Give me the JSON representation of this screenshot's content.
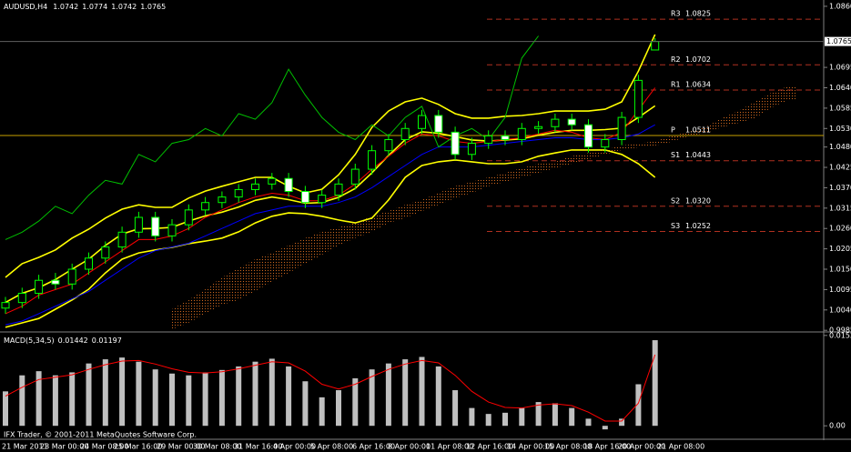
{
  "chart_data": [
    {
      "type": "candlestick",
      "title": "AUDUSD,H4",
      "open": [
        1.0045,
        1.006,
        1.0085,
        1.012,
        1.011,
        1.015,
        1.018,
        1.021,
        1.025,
        1.029,
        1.024,
        1.027,
        1.031,
        1.033,
        1.0345,
        1.0365,
        1.038,
        1.0395,
        1.036,
        1.033,
        1.035,
        1.038,
        1.042,
        1.047,
        1.05,
        1.053,
        1.0565,
        1.052,
        1.046,
        1.049,
        1.051,
        1.05,
        1.053,
        1.0535,
        1.0555,
        1.054,
        1.048,
        1.05,
        1.056,
        1.0742
      ],
      "high": [
        1.0075,
        1.01,
        1.0135,
        1.014,
        1.0165,
        1.0195,
        1.0225,
        1.0265,
        1.0305,
        1.0305,
        1.0285,
        1.0325,
        1.0345,
        1.036,
        1.038,
        1.0395,
        1.041,
        1.041,
        1.0375,
        1.0365,
        1.0395,
        1.0435,
        1.0485,
        1.0515,
        1.0545,
        1.058,
        1.058,
        1.0535,
        1.0505,
        1.0525,
        1.0525,
        1.0545,
        1.055,
        1.057,
        1.057,
        1.0555,
        1.0515,
        1.0575,
        1.0675,
        1.0774
      ],
      "low": [
        1.003,
        1.0045,
        1.007,
        1.0095,
        1.0095,
        1.0135,
        1.0165,
        1.0195,
        1.0235,
        1.0225,
        1.0225,
        1.0255,
        1.0295,
        1.0315,
        1.033,
        1.035,
        1.0365,
        1.0345,
        1.0315,
        1.0315,
        1.0335,
        1.0365,
        1.0405,
        1.0455,
        1.0485,
        1.0515,
        1.0505,
        1.0445,
        1.0445,
        1.0475,
        1.0485,
        1.0485,
        1.0515,
        1.052,
        1.0525,
        1.0465,
        1.0465,
        1.0485,
        1.0545,
        1.0742
      ],
      "close": [
        1.006,
        1.0085,
        1.012,
        1.011,
        1.015,
        1.018,
        1.021,
        1.025,
        1.029,
        1.024,
        1.027,
        1.031,
        1.033,
        1.0345,
        1.0365,
        1.038,
        1.0395,
        1.036,
        1.033,
        1.035,
        1.038,
        1.042,
        1.047,
        1.05,
        1.053,
        1.0565,
        1.052,
        1.046,
        1.049,
        1.051,
        1.05,
        1.053,
        1.0535,
        1.0555,
        1.054,
        1.048,
        1.05,
        1.056,
        1.066,
        1.0765
      ],
      "candle_color": "#00ff00",
      "lines": [
        {
          "color": "#ffff00",
          "values": [
            1.0128,
            1.0165,
            1.0182,
            1.0202,
            1.0234,
            1.0258,
            1.0288,
            1.0312,
            1.0324,
            1.0317,
            1.0317,
            1.0342,
            1.0361,
            1.0374,
            1.0386,
            1.0398,
            1.0398,
            1.0374,
            1.0356,
            1.0366,
            1.0405,
            1.046,
            1.0533,
            1.0577,
            1.0602,
            1.0612,
            1.0595,
            1.057,
            1.0558,
            1.0558,
            1.0563,
            1.0565,
            1.057,
            1.0577,
            1.0577,
            1.0577,
            1.0582,
            1.0602,
            1.0685,
            1.0784
          ]
        },
        {
          "color": "#ffff00",
          "values": [
            1.006,
            1.0085,
            1.01,
            1.0122,
            1.015,
            1.0177,
            1.0214,
            1.0245,
            1.0259,
            1.026,
            1.0263,
            1.028,
            1.0294,
            1.0304,
            1.0318,
            1.0336,
            1.0345,
            1.0338,
            1.0328,
            1.033,
            1.0344,
            1.0368,
            1.041,
            1.0457,
            1.05,
            1.0521,
            1.0517,
            1.0508,
            1.0499,
            1.0496,
            1.0499,
            1.0502,
            1.0512,
            1.052,
            1.0525,
            1.0525,
            1.0527,
            1.0531,
            1.056,
            1.0591
          ]
        },
        {
          "color": "#ffff00",
          "values": [
            0.9993,
            1.0005,
            1.0017,
            1.0042,
            1.0067,
            1.0096,
            1.014,
            1.0177,
            1.0194,
            1.0202,
            1.0209,
            1.0219,
            1.0226,
            1.0234,
            1.0251,
            1.0275,
            1.0293,
            1.0302,
            1.03,
            1.0293,
            1.0283,
            1.0275,
            1.0288,
            1.0337,
            1.0398,
            1.043,
            1.044,
            1.0445,
            1.044,
            1.0435,
            1.0435,
            1.044,
            1.0455,
            1.0464,
            1.0472,
            1.0472,
            1.0472,
            1.046,
            1.0435,
            1.0398
          ]
        },
        {
          "color": "#ff0000",
          "values": [
            1.003,
            1.005,
            1.008,
            1.0095,
            1.011,
            1.014,
            1.017,
            1.02,
            1.023,
            1.023,
            1.024,
            1.026,
            1.029,
            1.031,
            1.033,
            1.0345,
            1.0355,
            1.035,
            1.0335,
            1.0335,
            1.035,
            1.038,
            1.042,
            1.0455,
            1.049,
            1.0515,
            1.051,
            1.0495,
            1.049,
            1.0495,
            1.05,
            1.0505,
            1.0515,
            1.0525,
            1.052,
            1.0505,
            1.05,
            1.052,
            1.058,
            1.064
          ]
        },
        {
          "color": "#0000ff",
          "values": [
            1.0,
            1.001,
            1.003,
            1.005,
            1.007,
            1.009,
            1.012,
            1.015,
            1.018,
            1.02,
            1.021,
            1.022,
            1.024,
            1.026,
            1.028,
            1.03,
            1.031,
            1.032,
            1.032,
            1.032,
            1.033,
            1.0345,
            1.037,
            1.04,
            1.043,
            1.046,
            1.048,
            1.048,
            1.048,
            1.0485,
            1.049,
            1.0495,
            1.05,
            1.0505,
            1.0505,
            1.05,
            1.05,
            1.0505,
            1.0515,
            1.054
          ]
        },
        {
          "color": "#00c000",
          "values": [
            1.023,
            1.025,
            1.028,
            1.032,
            1.03,
            1.035,
            1.039,
            1.038,
            1.046,
            1.044,
            1.049,
            1.05,
            1.053,
            1.051,
            1.057,
            1.0555,
            1.06,
            1.069,
            1.062,
            1.056,
            1.052,
            1.05,
            1.054,
            1.051,
            1.056,
            1.059,
            1.048,
            1.051,
            1.053,
            1.05,
            1.056,
            1.072,
            1.078,
            null,
            null,
            null,
            null,
            null,
            null,
            null
          ]
        }
      ],
      "cloud": {
        "color": "#d2691e",
        "span_a": [
          null,
          null,
          null,
          null,
          null,
          null,
          null,
          null,
          null,
          null,
          1.0042,
          1.0067,
          1.0096,
          1.0128,
          1.0153,
          1.0177,
          1.0194,
          1.0214,
          1.0234,
          1.0251,
          1.0263,
          1.0275,
          1.0293,
          1.0307,
          1.0324,
          1.0337,
          1.0356,
          1.0374,
          1.0386,
          1.0398,
          1.041,
          1.0423,
          1.0435,
          1.044,
          1.0455,
          1.0464,
          1.0472,
          1.0484,
          1.0489,
          1.0496,
          1.0509,
          1.0521,
          1.0533,
          1.0558,
          1.0577,
          1.0602,
          1.0627,
          1.0644
        ],
        "span_b": [
          null,
          null,
          null,
          null,
          null,
          null,
          null,
          null,
          null,
          null,
          0.9988,
          1.0005,
          1.003,
          1.0054,
          1.0067,
          1.0091,
          1.0116,
          1.014,
          1.0165,
          1.0189,
          1.0214,
          1.0234,
          1.0251,
          1.0275,
          1.0288,
          1.0307,
          1.0324,
          1.0342,
          1.0356,
          1.0374,
          1.0386,
          1.0398,
          1.041,
          1.0423,
          1.0435,
          1.0447,
          1.046,
          1.0472,
          1.0479,
          1.0484,
          1.0494,
          1.0509,
          1.0518,
          1.0533,
          1.0545,
          1.0558,
          1.0587,
          1.0607
        ]
      },
      "pivots": [
        {
          "name": "R3",
          "value": 1.0825,
          "color": "#b03020",
          "line_style": "dashed"
        },
        {
          "name": "R2",
          "value": 1.0702,
          "color": "#b03020",
          "line_style": "dashed"
        },
        {
          "name": "R1",
          "value": 1.0634,
          "color": "#b03020",
          "line_style": "dashed"
        },
        {
          "name": "P",
          "value": 1.0511,
          "color": "#c8a000",
          "line_style": "solid"
        },
        {
          "name": "S1",
          "value": 1.0443,
          "color": "#b03020",
          "line_style": "dashed"
        },
        {
          "name": "S2",
          "value": {
            "value": 1.032,
            "label": "1.0320"
          },
          "color": "#b03020",
          "line_style": "dashed"
        },
        {
          "name": "S3",
          "value": 1.0252,
          "color": "#b03020",
          "line_style": "dashed"
        }
      ],
      "ylim": [
        0.9983,
        1.0877
      ],
      "yticks": [
        {
          "value": 1.086,
          "label": "1.0860"
        },
        1.0695,
        {
          "value": 1.064,
          "label": "1.0640"
        },
        1.0585,
        {
          "value": 1.053,
          "label": "1.0530"
        },
        {
          "value": 1.048,
          "label": "1.0480"
        },
        1.0425,
        {
          "value": 1.037,
          "label": "1.0370"
        },
        1.0315,
        {
          "value": 1.026,
          "label": "1.0260"
        },
        1.0205,
        {
          "value": 1.015,
          "label": "1.0150"
        },
        1.0095,
        {
          "value": 1.004,
          "label": "1.0040"
        },
        0.9985
      ]
    },
    {
      "type": "bar",
      "title": "MACD(5,34,5)",
      "histogram": [
        0.0058,
        0.0085,
        0.0092,
        0.0085,
        0.009,
        0.0105,
        0.0112,
        0.0115,
        0.0108,
        0.0095,
        0.0088,
        0.0085,
        0.009,
        0.0094,
        0.01,
        0.0108,
        0.0113,
        0.01,
        0.0075,
        0.0048,
        0.006,
        0.008,
        0.0095,
        0.0105,
        0.0112,
        0.0116,
        0.01,
        0.006,
        0.003,
        0.002,
        0.0022,
        0.003,
        0.004,
        0.0038,
        0.003,
        0.0012,
        -0.0006,
        0.0012,
        0.007,
        0.01442
      ],
      "signal": [
        0.005,
        0.0065,
        0.0078,
        0.0082,
        0.0086,
        0.0095,
        0.0103,
        0.0109,
        0.011,
        0.0104,
        0.0096,
        0.009,
        0.0089,
        0.0091,
        0.0096,
        0.0102,
        0.0108,
        0.0106,
        0.0092,
        0.007,
        0.0062,
        0.007,
        0.0083,
        0.0095,
        0.0104,
        0.011,
        0.0106,
        0.0085,
        0.0058,
        0.004,
        0.0031,
        0.003,
        0.0035,
        0.0037,
        0.0034,
        0.0023,
        0.0008,
        0.0008,
        0.0038,
        0.01197
      ],
      "histogram_color": "#c0c0c0",
      "signal_color": "#ff0000",
      "ylim": [
        -0.0015,
        0.0155
      ],
      "yticks": [
        0.01522,
        {
          "value": 0,
          "label": "0.00"
        }
      ],
      "annotation": "IFX Trader, © 2001-2011 MetaQuotes Software Corp.",
      "x_labels": [
        "21 Mar 2011",
        "23 Mar 00:00",
        "24 Mar 08:00",
        "25 Mar 16:00",
        "29 Mar 00:00",
        "30 Mar 08:00",
        "31 Mar 16:00",
        "4 Apr 00:00",
        "5 Apr 08:00",
        "6 Apr 16:00",
        "8 Apr 00:00",
        "11 Apr 08:00",
        "12 Apr 16:00",
        "14 Apr 00:00",
        "15 Apr 08:00",
        "18 Apr 16:00",
        "20 Apr 00:00",
        "21 Apr 08:00"
      ]
    }
  ]
}
